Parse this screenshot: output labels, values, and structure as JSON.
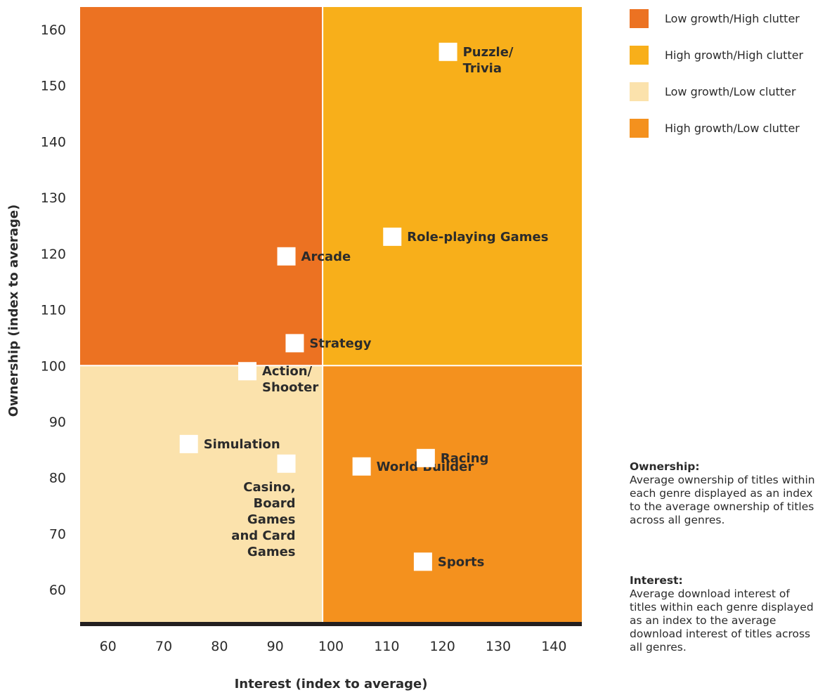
{
  "chart_data": {
    "type": "scatter",
    "xlabel": "Interest (index to average)",
    "ylabel": "Ownership (index to average)",
    "xlim": [
      55,
      145
    ],
    "ylim": [
      54,
      164
    ],
    "x_ticks": [
      60,
      70,
      80,
      90,
      100,
      110,
      120,
      130,
      140
    ],
    "y_ticks": [
      60,
      70,
      80,
      90,
      100,
      110,
      120,
      130,
      140,
      150,
      160
    ],
    "grid": false,
    "legend_position": "top-right",
    "quadrant_dividers": {
      "x": 98.5,
      "y": 100
    },
    "quadrants": [
      {
        "name": "Low growth/High clutter",
        "color": "#EC7222",
        "x": [
          55,
          98.5
        ],
        "y": [
          100,
          164
        ]
      },
      {
        "name": "High growth/High clutter",
        "color": "#F8AF1A",
        "x": [
          98.5,
          145
        ],
        "y": [
          100,
          164
        ]
      },
      {
        "name": "Low growth/Low clutter",
        "color": "#FBE2AC",
        "x": [
          55,
          98.5
        ],
        "y": [
          54,
          100
        ]
      },
      {
        "name": "High growth/Low clutter",
        "color": "#F4911E",
        "x": [
          98.5,
          145
        ],
        "y": [
          54,
          100
        ]
      }
    ],
    "points": [
      {
        "label": [
          "Puzzle/",
          "Trivia"
        ],
        "x": 121,
        "y": 156,
        "anchor": "start"
      },
      {
        "label": [
          "Role-playing Games"
        ],
        "x": 111,
        "y": 123,
        "anchor": "start"
      },
      {
        "label": [
          "Arcade"
        ],
        "x": 92,
        "y": 119.5,
        "anchor": "start"
      },
      {
        "label": [
          "Strategy"
        ],
        "x": 93.5,
        "y": 104,
        "anchor": "start"
      },
      {
        "label": [
          "Action/",
          "Shooter"
        ],
        "x": 85,
        "y": 99,
        "anchor": "start"
      },
      {
        "label": [
          "Simulation"
        ],
        "x": 74.5,
        "y": 86,
        "anchor": "start"
      },
      {
        "label": [
          "Casino,",
          "Board",
          "Games",
          "and Card",
          "Games"
        ],
        "x": 92,
        "y": 82.5,
        "anchor": "end"
      },
      {
        "label": [
          "World Builder"
        ],
        "x": 105.5,
        "y": 82,
        "anchor": "start"
      },
      {
        "label": [
          "Racing"
        ],
        "x": 117,
        "y": 83.5,
        "anchor": "start"
      },
      {
        "label": [
          "Sports"
        ],
        "x": 116.5,
        "y": 65,
        "anchor": "start"
      }
    ]
  },
  "notes": {
    "ownership_title": "Ownership:",
    "ownership_text": "Average ownership of titles within each genre displayed as an index to the average ownership of titles across all genres.",
    "interest_title": "Interest:",
    "interest_text": "Average download interest of titles within each genre displayed as an index to the average download interest of titles across all genres."
  },
  "colors": {
    "marker": "#FFFFFF",
    "baseline": "#231F20",
    "text": "#2B2B2B"
  }
}
